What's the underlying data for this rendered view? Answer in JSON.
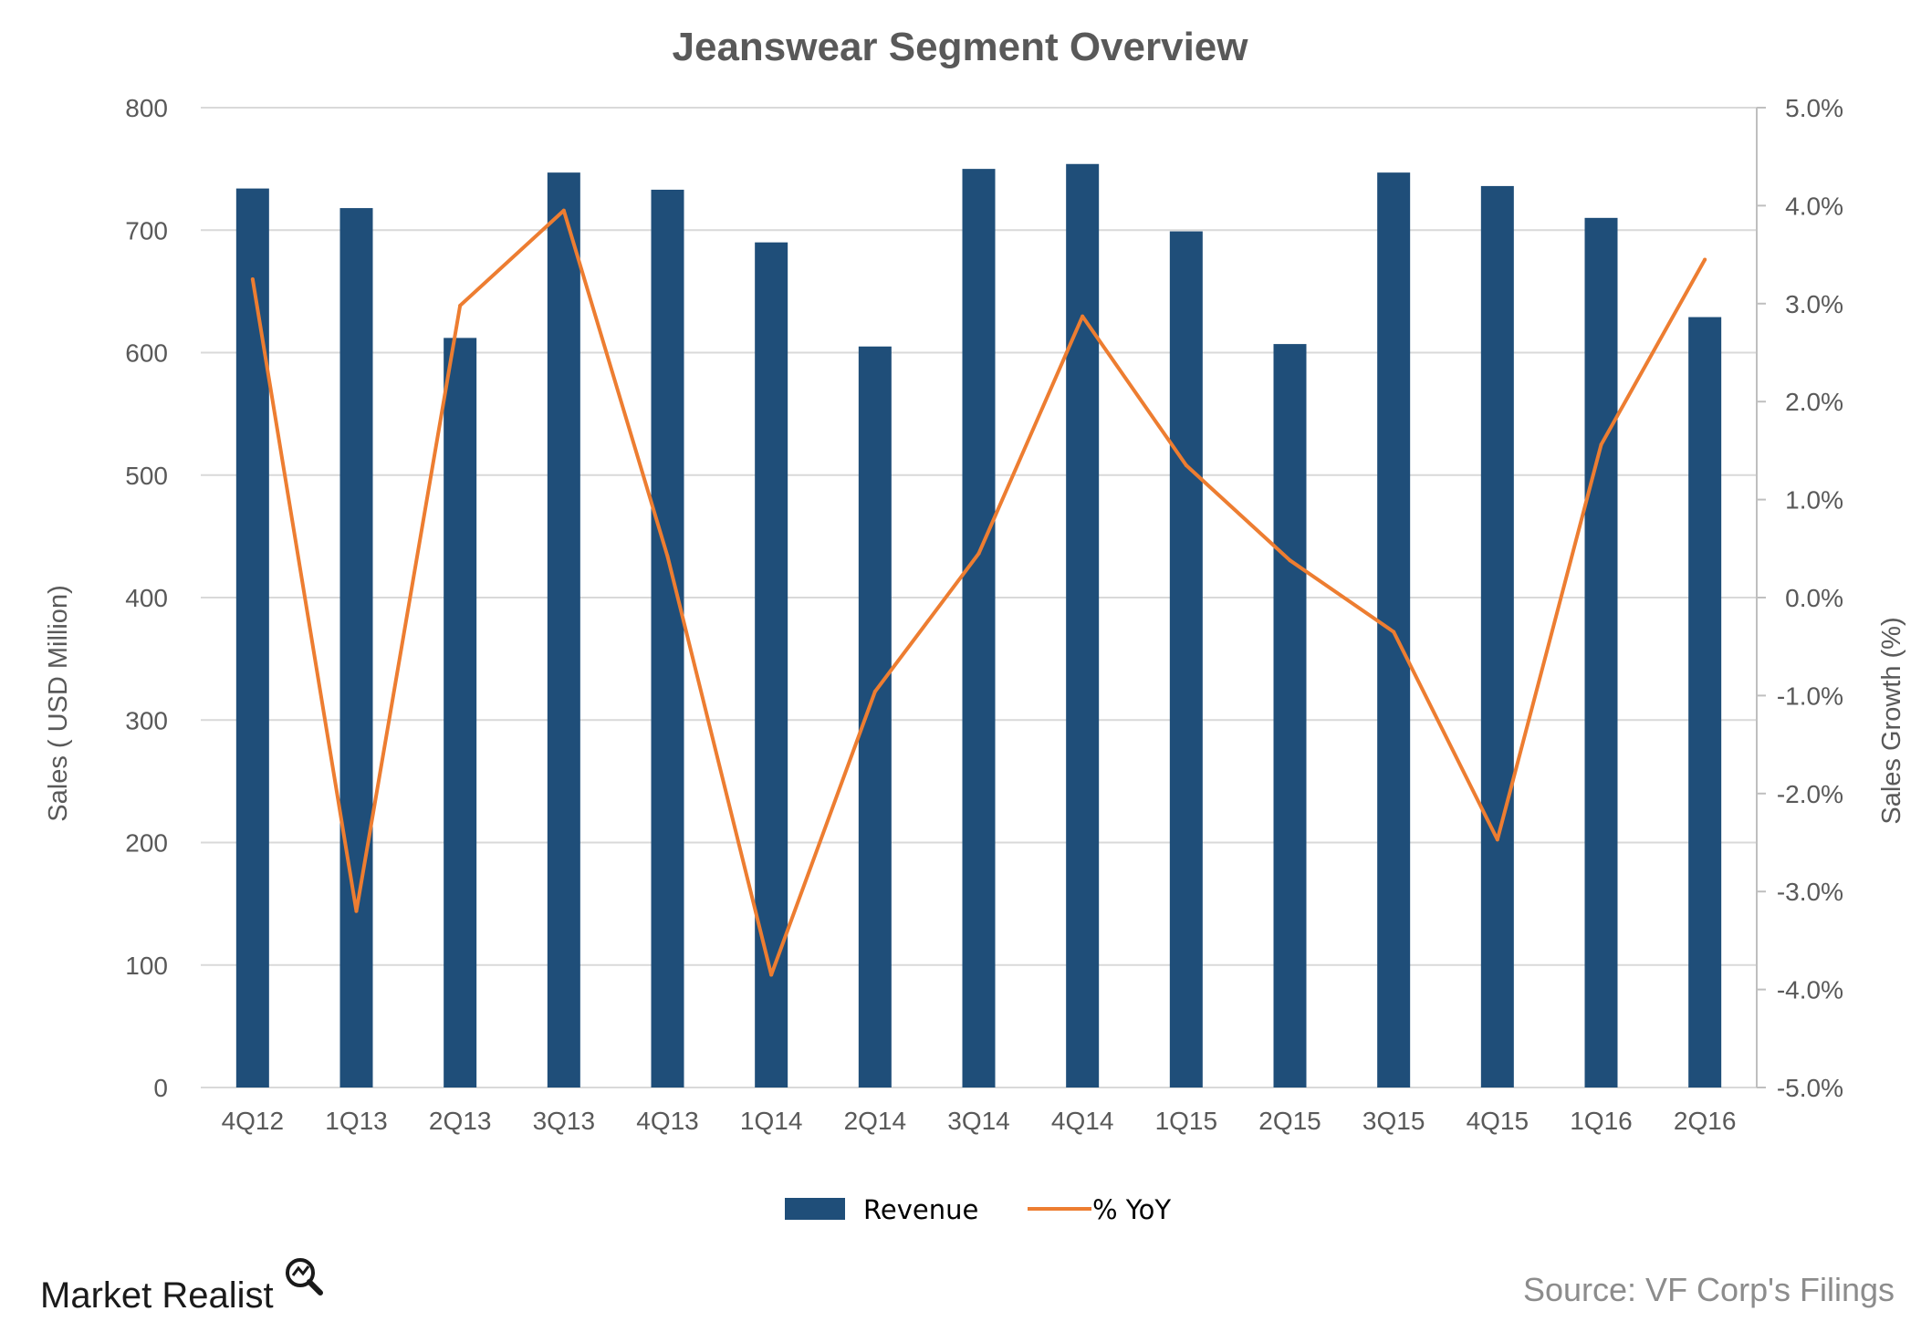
{
  "chart_data": {
    "type": "bar",
    "title": "Jeanswear Segment Overview",
    "categories": [
      "4Q12",
      "1Q13",
      "2Q13",
      "3Q13",
      "4Q13",
      "1Q14",
      "2Q14",
      "3Q14",
      "4Q14",
      "1Q15",
      "2Q15",
      "3Q15",
      "4Q15",
      "1Q16",
      "2Q16"
    ],
    "series": [
      {
        "name": "Revenue",
        "type": "bar",
        "axis": "left",
        "color": "#1f4e79",
        "values": [
          734,
          718,
          612,
          747,
          733,
          690,
          605,
          750,
          754,
          699,
          607,
          747,
          736,
          710,
          629
        ]
      },
      {
        "name": "% YoY",
        "type": "line",
        "axis": "right",
        "color": "#ed7d31",
        "values": [
          3.25,
          -3.2,
          2.98,
          3.95,
          0.42,
          -3.85,
          -0.96,
          0.45,
          2.87,
          1.35,
          0.38,
          -0.35,
          -2.47,
          1.56,
          3.45
        ]
      }
    ],
    "ylabel": "Sales ( USD Million)",
    "ylim": [
      0,
      800
    ],
    "yticks": [
      "0",
      "100",
      "200",
      "300",
      "400",
      "500",
      "600",
      "700",
      "800"
    ],
    "y2label": "Sales Growth (%)",
    "y2lim": [
      -5,
      5
    ],
    "y2ticks": [
      "-5.0%",
      "-4.0%",
      "-3.0%",
      "-2.0%",
      "-1.0%",
      "0.0%",
      "1.0%",
      "2.0%",
      "3.0%",
      "4.0%",
      "5.0%"
    ],
    "grid": true,
    "legend_position": "bottom"
  },
  "branding": {
    "logo_text": "Market Realist",
    "source": "Source: VF Corp's Filings"
  }
}
